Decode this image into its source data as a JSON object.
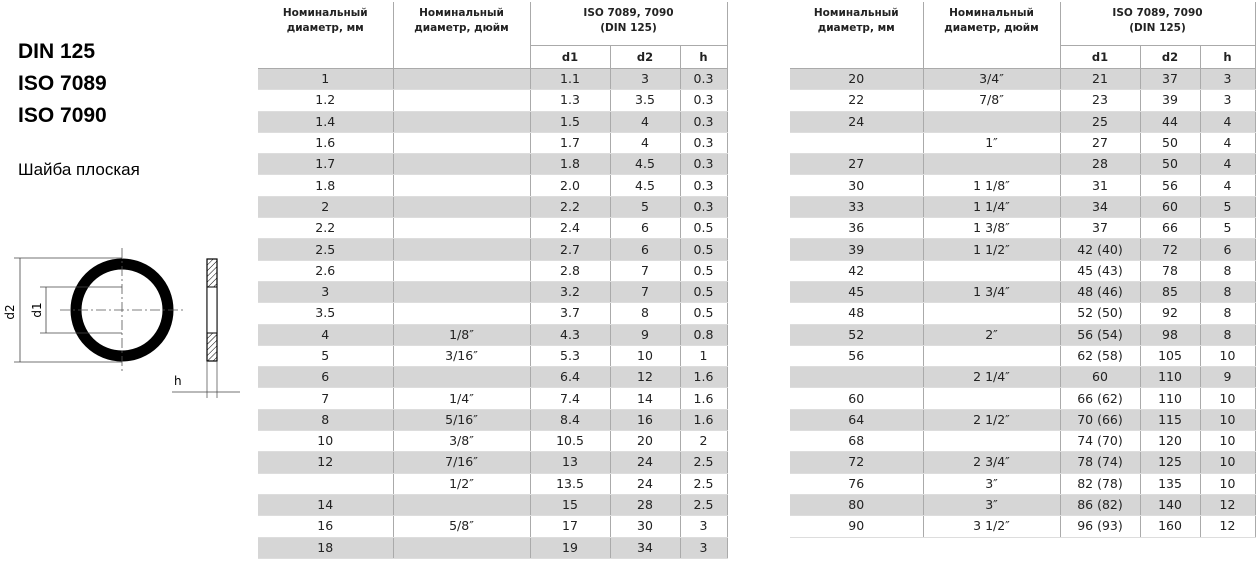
{
  "title_lines": [
    "DIN 125",
    "ISO 7089",
    "ISO 7090"
  ],
  "subtitle": "Шайба плоская",
  "diagram": {
    "outer_label": "d2",
    "inner_label": "d1",
    "thickness_label": "h"
  },
  "tables": [
    {
      "header": {
        "col_mm": [
          "Номинальный",
          "диаметр, мм"
        ],
        "col_inch": [
          "Номинальный",
          "диаметр, дюйм"
        ],
        "group": [
          "ISO 7089, 7090",
          "(DIN 125)"
        ],
        "sub": [
          "d1",
          "d2",
          "h"
        ]
      },
      "rows": [
        [
          "1",
          null,
          "1.1",
          "3",
          "0.3"
        ],
        [
          "1.2",
          null,
          "1.3",
          "3.5",
          "0.3"
        ],
        [
          "1.4",
          null,
          "1.5",
          "4",
          "0.3"
        ],
        [
          "1.6",
          null,
          "1.7",
          "4",
          "0.3"
        ],
        [
          "1.7",
          null,
          "1.8",
          "4.5",
          "0.3"
        ],
        [
          "1.8",
          null,
          "2.0",
          "4.5",
          "0.3"
        ],
        [
          "2",
          null,
          "2.2",
          "5",
          "0.3"
        ],
        [
          "2.2",
          null,
          "2.4",
          "6",
          "0.5"
        ],
        [
          "2.5",
          null,
          "2.7",
          "6",
          "0.5"
        ],
        [
          "2.6",
          null,
          "2.8",
          "7",
          "0.5"
        ],
        [
          "3",
          null,
          "3.2",
          "7",
          "0.5"
        ],
        [
          "3.5",
          null,
          "3.7",
          "8",
          "0.5"
        ],
        [
          "4",
          "1/8″",
          "4.3",
          "9",
          "0.8"
        ],
        [
          "5",
          "3/16″",
          "5.3",
          "10",
          "1"
        ],
        [
          "6",
          null,
          "6.4",
          "12",
          "1.6"
        ],
        [
          "7",
          "1/4″",
          "7.4",
          "14",
          "1.6"
        ],
        [
          "8",
          "5/16″",
          "8.4",
          "16",
          "1.6"
        ],
        [
          "10",
          "3/8″",
          "10.5",
          "20",
          "2"
        ],
        [
          "12",
          "7/16″",
          "13",
          "24",
          "2.5"
        ],
        [
          null,
          "1/2″",
          "13.5",
          "24",
          "2.5"
        ],
        [
          "14",
          null,
          "15",
          "28",
          "2.5"
        ],
        [
          "16",
          "5/8″",
          "17",
          "30",
          "3"
        ],
        [
          "18",
          null,
          "19",
          "34",
          "3"
        ]
      ]
    },
    {
      "header": {
        "col_mm": [
          "Номинальный",
          "диаметр, мм"
        ],
        "col_inch": [
          "Номинальный",
          "диаметр, дюйм"
        ],
        "group": [
          "ISO 7089, 7090",
          "(DIN 125)"
        ],
        "sub": [
          "d1",
          "d2",
          "h"
        ]
      },
      "rows": [
        [
          "20",
          "3/4″",
          "21",
          "37",
          "3"
        ],
        [
          "22",
          "7/8″",
          "23",
          "39",
          "3"
        ],
        [
          "24",
          null,
          "25",
          "44",
          "4"
        ],
        [
          null,
          "1″",
          "27",
          "50",
          "4"
        ],
        [
          "27",
          null,
          "28",
          "50",
          "4"
        ],
        [
          "30",
          "1 1/8″",
          "31",
          "56",
          "4"
        ],
        [
          "33",
          "1 1/4″",
          "34",
          "60",
          "5"
        ],
        [
          "36",
          "1 3/8″",
          "37",
          "66",
          "5"
        ],
        [
          "39",
          "1 1/2″",
          "42 (40)",
          "72",
          "6"
        ],
        [
          "42",
          null,
          "45 (43)",
          "78",
          "8"
        ],
        [
          "45",
          "1 3/4″",
          "48 (46)",
          "85",
          "8"
        ],
        [
          "48",
          null,
          "52 (50)",
          "92",
          "8"
        ],
        [
          "52",
          "2″",
          "56 (54)",
          "98",
          "8"
        ],
        [
          "56",
          null,
          "62 (58)",
          "105",
          "10"
        ],
        [
          null,
          "2 1/4″",
          "60",
          "110",
          "9"
        ],
        [
          "60",
          null,
          "66 (62)",
          "110",
          "10"
        ],
        [
          "64",
          "2 1/2″",
          "70 (66)",
          "115",
          "10"
        ],
        [
          "68",
          null,
          "74 (70)",
          "120",
          "10"
        ],
        [
          "72",
          "2 3/4″",
          "78 (74)",
          "125",
          "10"
        ],
        [
          "76",
          "3″",
          "82 (78)",
          "135",
          "10"
        ],
        [
          "80",
          "3″",
          "86 (82)",
          "140",
          "12"
        ],
        [
          "90",
          "3 1/2″",
          "96 (93)",
          "160",
          "12"
        ]
      ]
    }
  ]
}
